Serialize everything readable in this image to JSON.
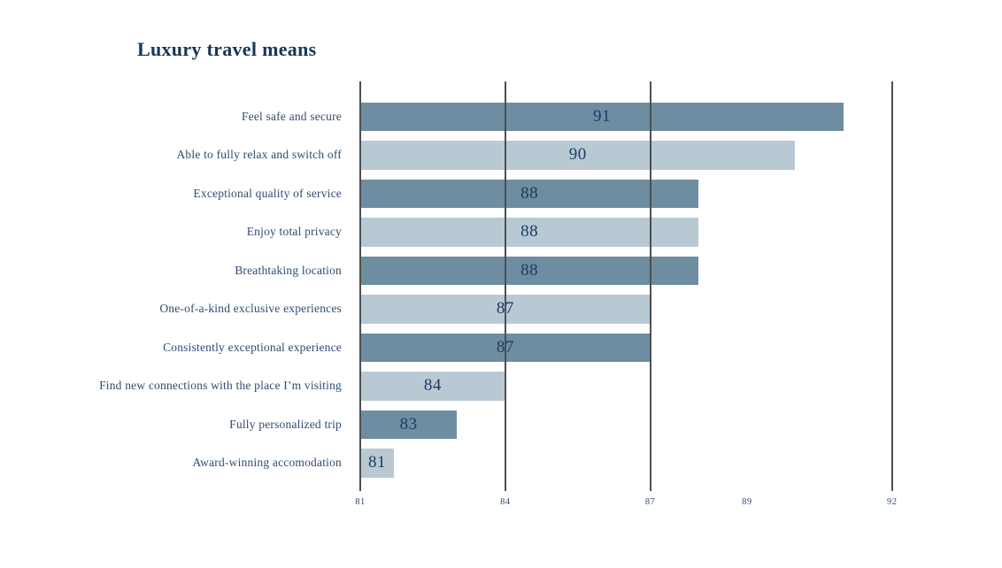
{
  "chart_data": {
    "type": "bar",
    "orientation": "horizontal",
    "title": "Luxury travel means",
    "categories": [
      "Feel safe and secure",
      "Able to fully relax and switch off",
      "Exceptional quality of service",
      "Enjoy total privacy",
      "Breathtaking location",
      "One-of-a-kind exclusive experiences",
      "Consistently exceptional experience",
      "Find new connections with the place I’m visiting",
      "Fully personalized trip",
      "Award-winning accomodation"
    ],
    "values": [
      91,
      90,
      88,
      88,
      88,
      87,
      87,
      84,
      83,
      81
    ],
    "value_labels": [
      "91",
      "90",
      "88",
      "88",
      "88",
      "87",
      "87",
      "84",
      "83",
      "81"
    ],
    "bar_colors": [
      "#6f8da0",
      "#b9c9d4"
    ],
    "bar_color_pattern": "alternating-dark-light",
    "value_label_color": "#1b3b63",
    "category_label_color": "#2e4d72",
    "title_color": "#17365a",
    "gridline_color": "#4c4f52",
    "xlim": [
      81,
      92.5
    ],
    "ticks": [
      {
        "label": "81",
        "value": 81,
        "gridline": true
      },
      {
        "label": "84",
        "value": 84,
        "gridline": true
      },
      {
        "label": "87",
        "value": 87,
        "gridline": true
      },
      {
        "label": "89",
        "value": 89,
        "gridline": false
      },
      {
        "label": "92",
        "value": 92,
        "gridline": true
      }
    ],
    "legend": "none",
    "grid": "vertical-lines-over-bars",
    "background": "#ffffff"
  }
}
